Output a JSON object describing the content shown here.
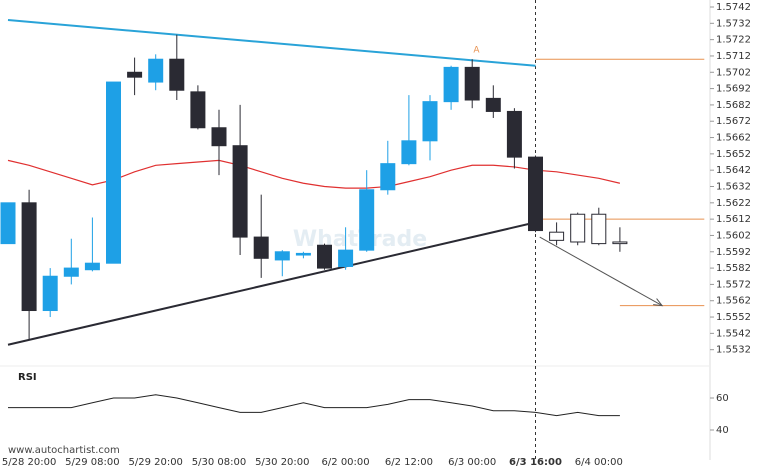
{
  "chart_data": [
    {
      "type": "candlestick",
      "categories": [
        null,
        "5/28 20:00",
        null,
        null,
        "5/29 08:00",
        null,
        null,
        "5/29 20:00",
        null,
        null,
        "5/30 08:00",
        null,
        null,
        "5/30 20:00",
        null,
        null,
        "6/2 00:00",
        null,
        null,
        "6/2 12:00",
        null,
        null,
        "6/3 00:00",
        null,
        null,
        "6/3 16:00",
        null,
        null,
        "6/4 00:00",
        null
      ],
      "open": [
        1.5597,
        1.5622,
        1.5556,
        1.5577,
        1.5581,
        1.5585,
        1.5702,
        1.5696,
        1.571,
        1.569,
        1.5668,
        1.5657,
        1.5601,
        1.5587,
        1.559,
        1.5596,
        1.5583,
        1.5593,
        1.563,
        1.5646,
        1.566,
        1.5684,
        1.5705,
        1.5686,
        1.5678,
        1.565,
        1.5599,
        1.5598,
        1.5597,
        1.5597
      ],
      "high": [
        1.5622,
        1.563,
        1.5582,
        1.56,
        1.5613,
        1.5696,
        1.5711,
        1.5713,
        1.5725,
        1.5694,
        1.5679,
        1.5682,
        1.5627,
        1.5593,
        1.5592,
        1.5597,
        1.5607,
        1.5642,
        1.566,
        1.5688,
        1.5688,
        1.5706,
        1.571,
        1.5694,
        1.568,
        1.5651,
        1.561,
        1.5616,
        1.5619,
        1.5607
      ],
      "low": [
        1.5597,
        1.5538,
        1.5552,
        1.5572,
        1.558,
        1.5585,
        1.5688,
        1.5691,
        1.5685,
        1.5667,
        1.5639,
        1.559,
        1.5576,
        1.5577,
        1.5588,
        1.5581,
        1.5581,
        1.5592,
        1.5627,
        1.5645,
        1.5648,
        1.5679,
        1.568,
        1.5674,
        1.5643,
        1.5604,
        1.5596,
        1.5596,
        1.5596,
        1.5592
      ],
      "close": [
        1.5622,
        1.5556,
        1.5577,
        1.5582,
        1.5585,
        1.5696,
        1.5699,
        1.571,
        1.5691,
        1.5668,
        1.5657,
        1.5601,
        1.5588,
        1.5592,
        1.5591,
        1.5582,
        1.5593,
        1.563,
        1.5646,
        1.566,
        1.5684,
        1.5705,
        1.5685,
        1.5678,
        1.565,
        1.5605,
        1.5604,
        1.5615,
        1.5615,
        1.5598
      ],
      "colors": [
        "#1ea0e6",
        "#2a2a33",
        "#1ea0e6",
        "#1ea0e6",
        "#1ea0e6",
        "#1ea0e6",
        "#2a2a33",
        "#1ea0e6",
        "#2a2a33",
        "#2a2a33",
        "#2a2a33",
        "#2a2a33",
        "#2a2a33",
        "#1ea0e6",
        "#1ea0e6",
        "#2a2a33",
        "#1ea0e6",
        "#1ea0e6",
        "#1ea0e6",
        "#1ea0e6",
        "#1ea0e6",
        "#1ea0e6",
        "#2a2a33",
        "#2a2a33",
        "#2a2a33",
        "#2a2a33",
        "#ffffff",
        "#ffffff",
        "#ffffff",
        "#ffffff"
      ],
      "series": [
        {
          "color": "#e03030",
          "values": [
            1.5648,
            1.5645,
            1.5641,
            1.5637,
            1.5633,
            1.5636,
            1.5641,
            1.5645,
            1.5646,
            1.5647,
            1.5648,
            1.5645,
            1.5641,
            1.5637,
            1.5634,
            1.5632,
            1.5631,
            1.5631,
            1.5632,
            1.5635,
            1.5638,
            1.5642,
            1.5645,
            1.5645,
            1.5644,
            1.5642,
            1.5641,
            1.5639,
            1.5637,
            1.5634
          ]
        }
      ],
      "trendlines": [
        {
          "color": "#29a3d8",
          "x": [
            0,
            25
          ],
          "y": [
            1.5734,
            1.5706
          ]
        },
        {
          "color": "#2a2a33",
          "x": [
            0,
            25
          ],
          "y": [
            1.5535,
            1.561
          ]
        }
      ],
      "levels": [
        {
          "color": "#e8914f",
          "x": [
            25,
            33
          ],
          "y": 1.571
        },
        {
          "color": "#e8914f",
          "x": [
            25,
            33
          ],
          "y": 1.5612
        },
        {
          "color": "#e8914f",
          "x": [
            29,
            33
          ],
          "y": 1.5559
        }
      ],
      "arrow": {
        "color": "#555555",
        "x": [
          25.2,
          31
        ],
        "y": [
          1.5601,
          1.5559
        ]
      },
      "pattern_marker": {
        "label": "A",
        "x": 22.2,
        "y": 1.5712
      },
      "marker_x": 25,
      "ylim": [
        1.5522,
        1.5742
      ],
      "yticks": [
        1.5742,
        1.5732,
        1.5722,
        1.5712,
        1.5702,
        1.5692,
        1.5682,
        1.5672,
        1.5662,
        1.5652,
        1.5642,
        1.5632,
        1.5622,
        1.5612,
        1.5602,
        1.5592,
        1.5582,
        1.5572,
        1.5562,
        1.5552,
        1.5542,
        1.5532
      ],
      "watermark": "WhatTrade",
      "source": "www.autochartist.com"
    },
    {
      "type": "line",
      "title": "RSI",
      "color": "#222222",
      "values": [
        54,
        54,
        54,
        54,
        57,
        60,
        60,
        62,
        60,
        57,
        54,
        51,
        51,
        54,
        57,
        54,
        54,
        54,
        56,
        59,
        59,
        57,
        55,
        52,
        52,
        51,
        49,
        51,
        49,
        49
      ],
      "ylim": [
        30,
        70
      ],
      "yticks": [
        40,
        60
      ]
    }
  ]
}
